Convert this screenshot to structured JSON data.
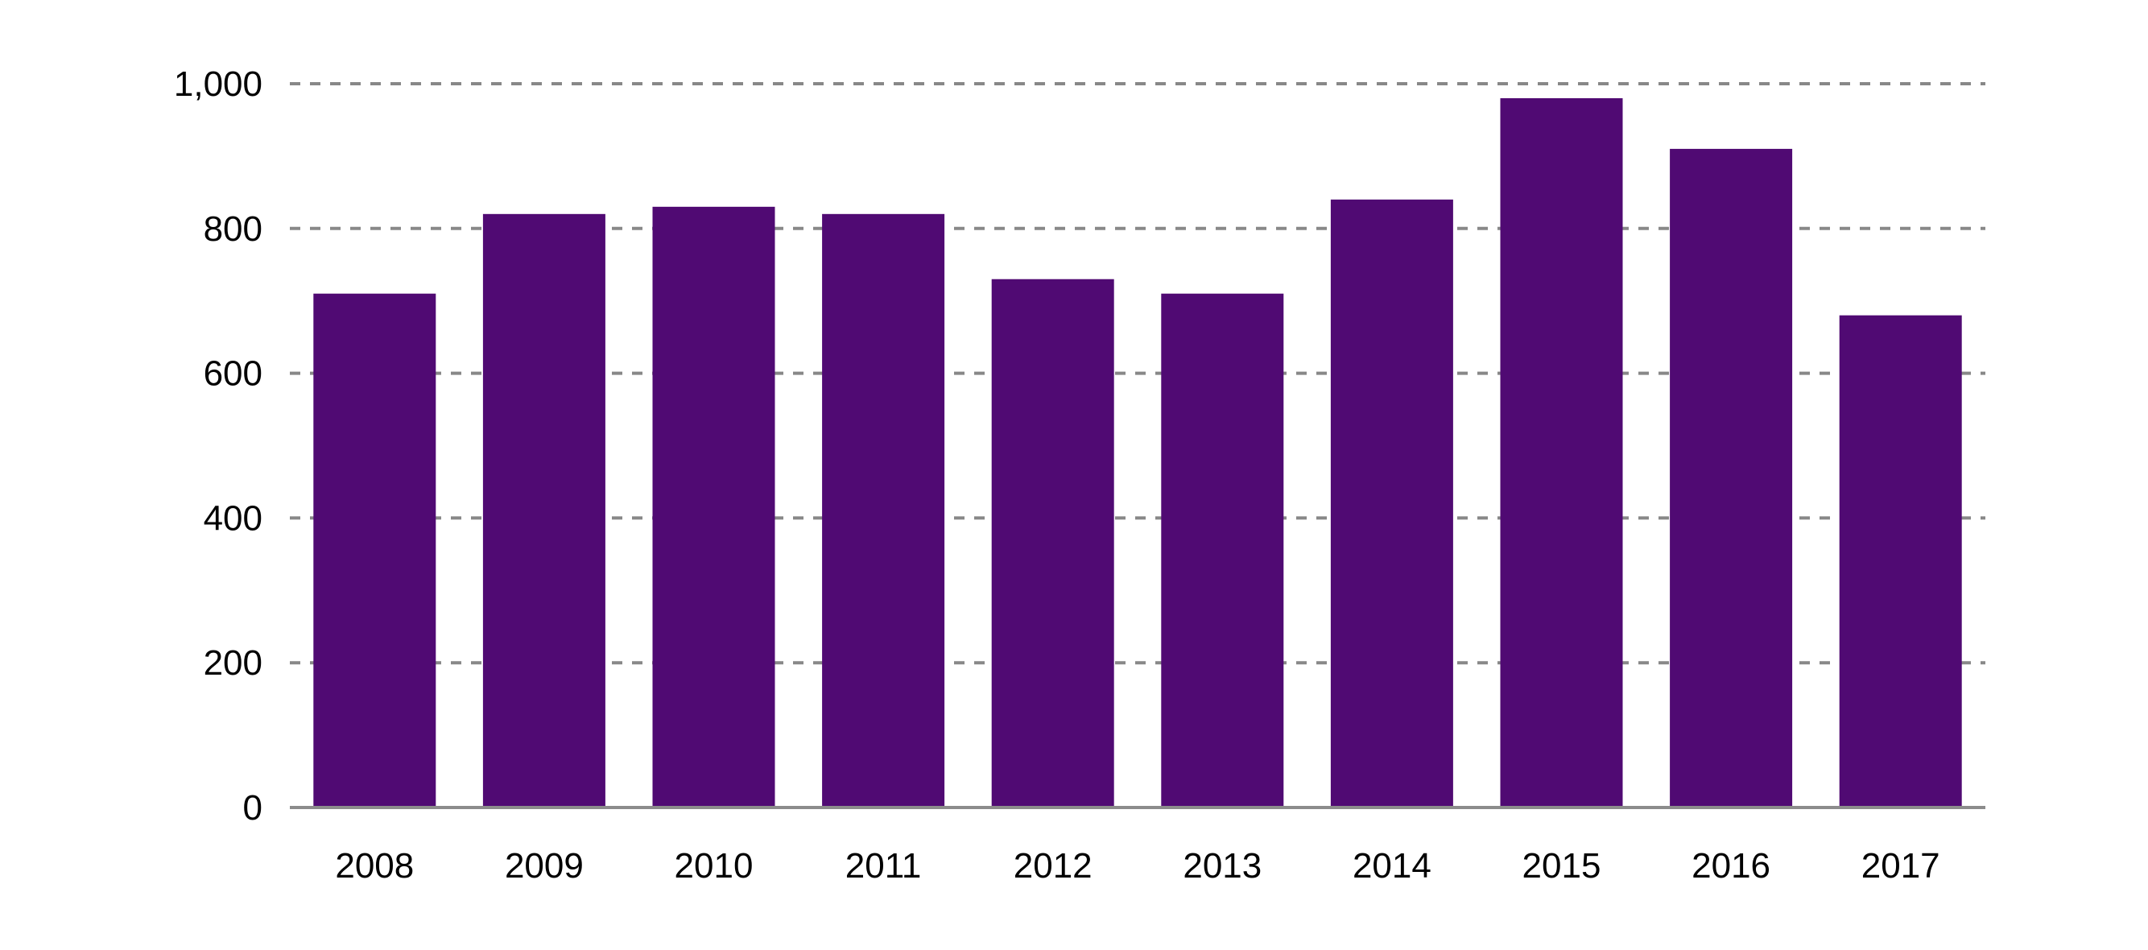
{
  "chart_data": {
    "type": "bar",
    "title": "",
    "xlabel": "",
    "ylabel": "",
    "categories": [
      "2008",
      "2009",
      "2010",
      "2011",
      "2012",
      "2013",
      "2014",
      "2015",
      "2016",
      "2017"
    ],
    "values": [
      710,
      820,
      830,
      820,
      730,
      710,
      840,
      980,
      910,
      680
    ],
    "ylim": [
      0,
      1000
    ],
    "yticks": [
      0,
      200,
      400,
      600,
      800,
      1000
    ],
    "ytick_labels": [
      "0",
      "200",
      "400",
      "600",
      "800",
      "1,000"
    ],
    "grid": "horizontal dashed",
    "legend": "none",
    "colors": {
      "bar": "#500a73",
      "grid": "#888888",
      "axis": "#8c8c8c",
      "text": "#000000"
    }
  }
}
